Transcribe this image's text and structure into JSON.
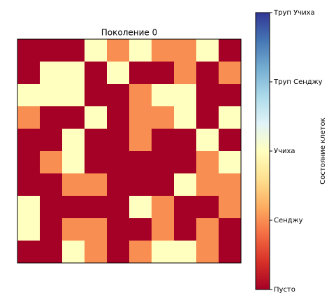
{
  "chart_data": {
    "type": "heatmap",
    "title": "Поколение 0",
    "z": [
      [
        0,
        0,
        0,
        2,
        1,
        2,
        1,
        1,
        2,
        0
      ],
      [
        0,
        2,
        2,
        0,
        2,
        0,
        0,
        1,
        0,
        1
      ],
      [
        2,
        2,
        2,
        0,
        0,
        1,
        2,
        2,
        0,
        0
      ],
      [
        1,
        0,
        0,
        2,
        0,
        1,
        1,
        2,
        0,
        2
      ],
      [
        0,
        0,
        2,
        0,
        0,
        1,
        0,
        0,
        2,
        0
      ],
      [
        0,
        1,
        2,
        0,
        0,
        0,
        0,
        0,
        1,
        2
      ],
      [
        0,
        0,
        1,
        1,
        0,
        0,
        0,
        2,
        1,
        1
      ],
      [
        2,
        0,
        0,
        0,
        0,
        2,
        1,
        0,
        0,
        1
      ],
      [
        2,
        0,
        1,
        1,
        0,
        0,
        1,
        0,
        1,
        0
      ],
      [
        0,
        0,
        2,
        1,
        0,
        1,
        2,
        2,
        1,
        0
      ]
    ],
    "colors": [
      "#a50026",
      "#d73027",
      "#f46d43",
      "#fdae61",
      "#fee090",
      "#ffffbf",
      "#e0f3f8",
      "#abd9e9",
      "#74add1",
      "#4575b4",
      "#313695"
    ],
    "clim": [
      0,
      4
    ],
    "colorbar_label": "Состояние клеток",
    "colorbar_ticks": [
      {
        "value": 0,
        "label": "Пусто"
      },
      {
        "value": 1,
        "label": "Сенджу"
      },
      {
        "value": 2,
        "label": "Учиха"
      },
      {
        "value": 3,
        "label": "Труп Сенджу"
      },
      {
        "value": 4,
        "label": "Труп Учиха"
      }
    ]
  }
}
